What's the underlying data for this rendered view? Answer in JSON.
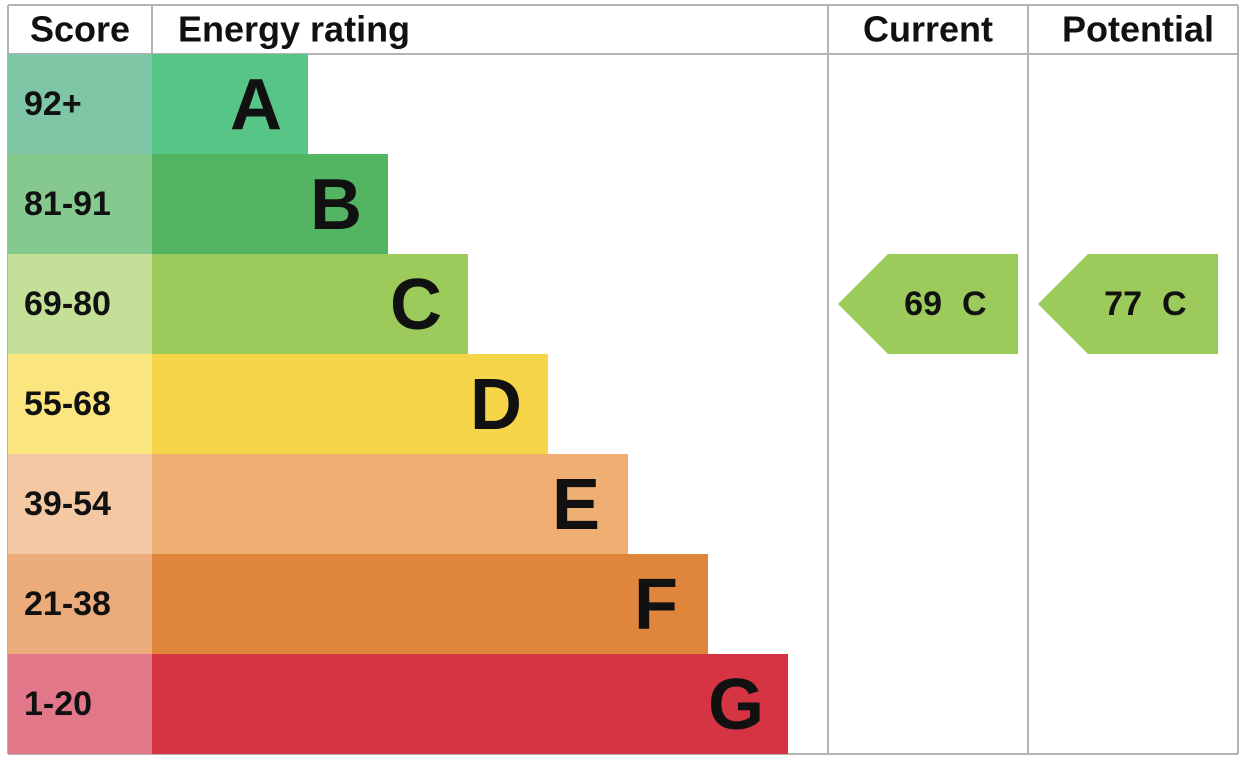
{
  "header": {
    "score": "Score",
    "rating": "Energy rating",
    "current": "Current",
    "potential": "Potential"
  },
  "bands": [
    {
      "range": "92+",
      "letter": "A",
      "color": "#57c586",
      "light": "#7fc6a6"
    },
    {
      "range": "81-91",
      "letter": "B",
      "color": "#53b462",
      "light": "#86c98f"
    },
    {
      "range": "69-80",
      "letter": "C",
      "color": "#9ccb5b",
      "light": "#c3df98"
    },
    {
      "range": "55-68",
      "letter": "D",
      "color": "#f6d648",
      "light": "#fbe57f"
    },
    {
      "range": "39-54",
      "letter": "E",
      "color": "#efae72",
      "light": "#f4c8a3"
    },
    {
      "range": "21-38",
      "letter": "F",
      "color": "#e0863c",
      "light": "#ebab7b"
    },
    {
      "range": "1-20",
      "letter": "G",
      "color": "#d53442",
      "light": "#e27789"
    }
  ],
  "current": {
    "score": "69",
    "band": "C"
  },
  "potential": {
    "score": "77",
    "band": "C"
  }
}
